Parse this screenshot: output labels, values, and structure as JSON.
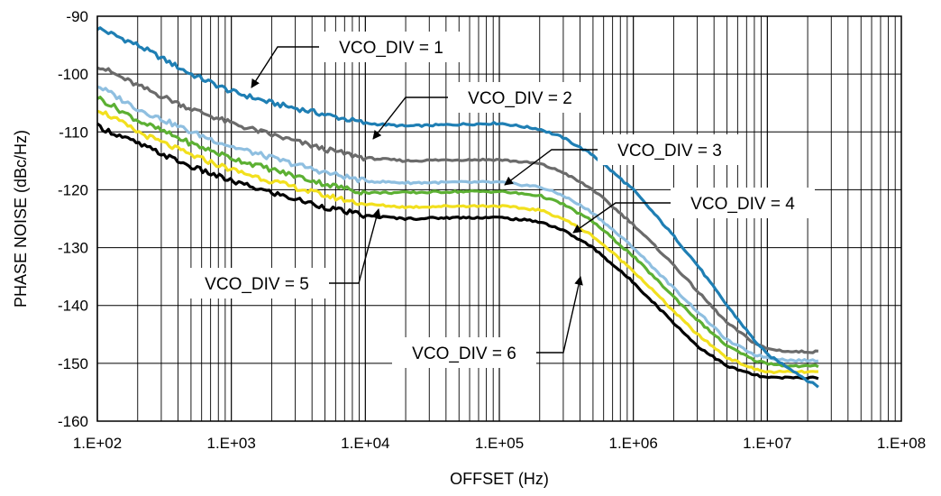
{
  "chart_data": {
    "type": "line",
    "title": "",
    "xlabel": "OFFSET (Hz)",
    "ylabel": "PHASE NOISE (dBc/Hz)",
    "xscale": "log",
    "xlim": [
      100,
      100000000
    ],
    "ylim": [
      -160,
      -90
    ],
    "x_ticks": [
      "1.E+02",
      "1.E+03",
      "1.E+04",
      "1.E+05",
      "1.E+06",
      "1.E+07",
      "1.E+08"
    ],
    "y_ticks": [
      "-90",
      "-100",
      "-110",
      "-120",
      "-130",
      "-140",
      "-150",
      "-160"
    ],
    "grid": true,
    "annotations": [
      "VCO_DIV = 1",
      "VCO_DIV = 2",
      "VCO_DIV = 3",
      "VCO_DIV = 4",
      "VCO_DIV = 5",
      "VCO_DIV = 6"
    ],
    "series": [
      {
        "name": "VCO_DIV = 1",
        "color": "#1f7fb4",
        "x": [
          100,
          200,
          500,
          1000,
          2000,
          5000,
          10000,
          20000,
          50000,
          100000,
          200000,
          300000,
          500000,
          1000000,
          2000000,
          3000000,
          5000000,
          8000000,
          10000000,
          15000000,
          20000000,
          24000000
        ],
        "y": [
          -92,
          -95,
          -100,
          -103,
          -105,
          -107,
          -108.5,
          -109,
          -108.7,
          -108.5,
          -109.5,
          -111,
          -114,
          -120,
          -128,
          -133,
          -140,
          -146,
          -148.5,
          -151,
          -153,
          -154
        ]
      },
      {
        "name": "VCO_DIV = 2",
        "color": "#6b6b6b",
        "x": [
          100,
          200,
          500,
          1000,
          2000,
          5000,
          10000,
          20000,
          50000,
          100000,
          200000,
          300000,
          500000,
          1000000,
          2000000,
          3000000,
          5000000,
          8000000,
          10000000,
          15000000,
          20000000,
          24000000
        ],
        "y": [
          -98.5,
          -102,
          -106,
          -108.5,
          -110.5,
          -113,
          -114.5,
          -115,
          -114.8,
          -114.8,
          -115.5,
          -117,
          -120,
          -126,
          -133,
          -137.5,
          -143,
          -146.5,
          -147.5,
          -148,
          -148,
          -148
        ]
      },
      {
        "name": "VCO_DIV = 3",
        "color": "#8fbfe0",
        "x": [
          100,
          200,
          500,
          1000,
          2000,
          5000,
          10000,
          20000,
          50000,
          100000,
          200000,
          300000,
          500000,
          1000000,
          2000000,
          3000000,
          5000000,
          8000000,
          10000000,
          15000000,
          20000000,
          24000000
        ],
        "y": [
          -102,
          -106,
          -110,
          -112.5,
          -114.5,
          -117,
          -118.5,
          -118.8,
          -118.7,
          -118.7,
          -119.5,
          -121,
          -124,
          -130,
          -137,
          -141,
          -146,
          -148.5,
          -149,
          -149.5,
          -149.5,
          -149.5
        ]
      },
      {
        "name": "VCO_DIV = 4",
        "color": "#5cb033",
        "x": [
          100,
          200,
          500,
          1000,
          2000,
          5000,
          10000,
          20000,
          50000,
          100000,
          200000,
          300000,
          500000,
          1000000,
          2000000,
          3000000,
          5000000,
          8000000,
          10000000,
          15000000,
          20000000,
          24000000
        ],
        "y": [
          -104,
          -108,
          -112,
          -114.5,
          -116.5,
          -119,
          -120.5,
          -120.5,
          -120.3,
          -120.3,
          -121,
          -122.5,
          -125.5,
          -131.5,
          -138.5,
          -142.5,
          -147,
          -149.5,
          -150,
          -150.5,
          -150.5,
          -150.5
        ]
      },
      {
        "name": "VCO_DIV = 5",
        "color": "#f2e01e",
        "x": [
          100,
          200,
          500,
          1000,
          2000,
          5000,
          10000,
          20000,
          50000,
          100000,
          200000,
          300000,
          500000,
          1000000,
          2000000,
          3000000,
          5000000,
          8000000,
          10000000,
          15000000,
          20000000,
          24000000
        ],
        "y": [
          -106,
          -110,
          -114,
          -116.5,
          -118.5,
          -121,
          -122.5,
          -123,
          -122.8,
          -122.8,
          -123.5,
          -125,
          -128,
          -134,
          -141,
          -145,
          -149,
          -151,
          -151.5,
          -151.5,
          -151.5,
          -151.5
        ]
      },
      {
        "name": "VCO_DIV = 6",
        "color": "#000000",
        "x": [
          100,
          200,
          500,
          1000,
          2000,
          5000,
          10000,
          20000,
          50000,
          100000,
          200000,
          300000,
          500000,
          1000000,
          2000000,
          3000000,
          5000000,
          8000000,
          10000000,
          15000000,
          20000000,
          24000000
        ],
        "y": [
          -109,
          -112,
          -116,
          -118.5,
          -120.5,
          -123,
          -124.5,
          -125,
          -124.8,
          -124.8,
          -125.5,
          -127,
          -130,
          -136,
          -143,
          -147,
          -150.5,
          -152,
          -152.5,
          -152.5,
          -152.5,
          -152.5
        ]
      }
    ]
  }
}
